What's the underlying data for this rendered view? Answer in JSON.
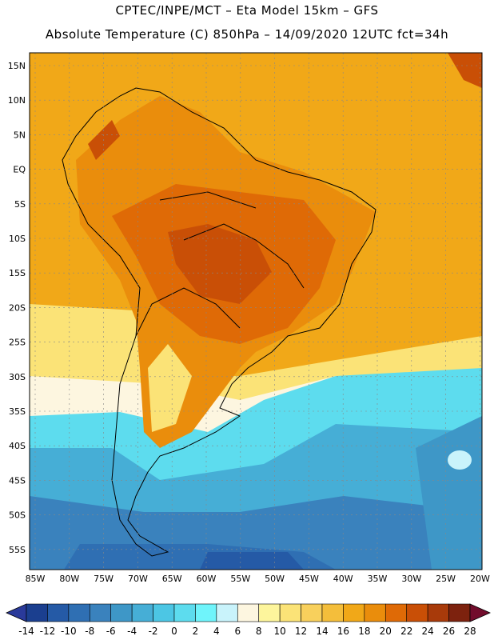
{
  "header": {
    "line1": "CPTEC/INPE/MCT –  Eta Model 15km – GFS",
    "line2": "Absolute Temperature (C) 850hPa – 14/09/2020 12UTC fct=34h"
  },
  "map": {
    "lat_labels": [
      "15N",
      "10N",
      "5N",
      "EQ",
      "5S",
      "10S",
      "15S",
      "20S",
      "25S",
      "30S",
      "35S",
      "40S",
      "45S",
      "50S",
      "55S"
    ],
    "lon_labels": [
      "85W",
      "80W",
      "75W",
      "70W",
      "65W",
      "60W",
      "55W",
      "50W",
      "45W",
      "40W",
      "35W",
      "30W",
      "25W",
      "20W"
    ]
  },
  "colorbar": {
    "labels": [
      "-14",
      "-12",
      "-10",
      "-8",
      "-6",
      "-4",
      "-2",
      "0",
      "2",
      "4",
      "6",
      "8",
      "10",
      "12",
      "14",
      "16",
      "18",
      "20",
      "22",
      "24",
      "26",
      "28"
    ],
    "colors": [
      "#1b3f8f",
      "#255aa6",
      "#2f6fb3",
      "#3a82bd",
      "#3e97c7",
      "#46aed6",
      "#4cc6e4",
      "#5ddcee",
      "#6ff4fb",
      "#c9f3fb",
      "#fdf6e0",
      "#fdf59c",
      "#fbe377",
      "#f8d05c",
      "#f4be3b",
      "#f1a818",
      "#ea8d0c",
      "#df6a06",
      "#c94f06",
      "#a83a0a",
      "#7d220e"
    ],
    "under_color": "#2a3a9a",
    "over_color": "#720c2c"
  }
}
